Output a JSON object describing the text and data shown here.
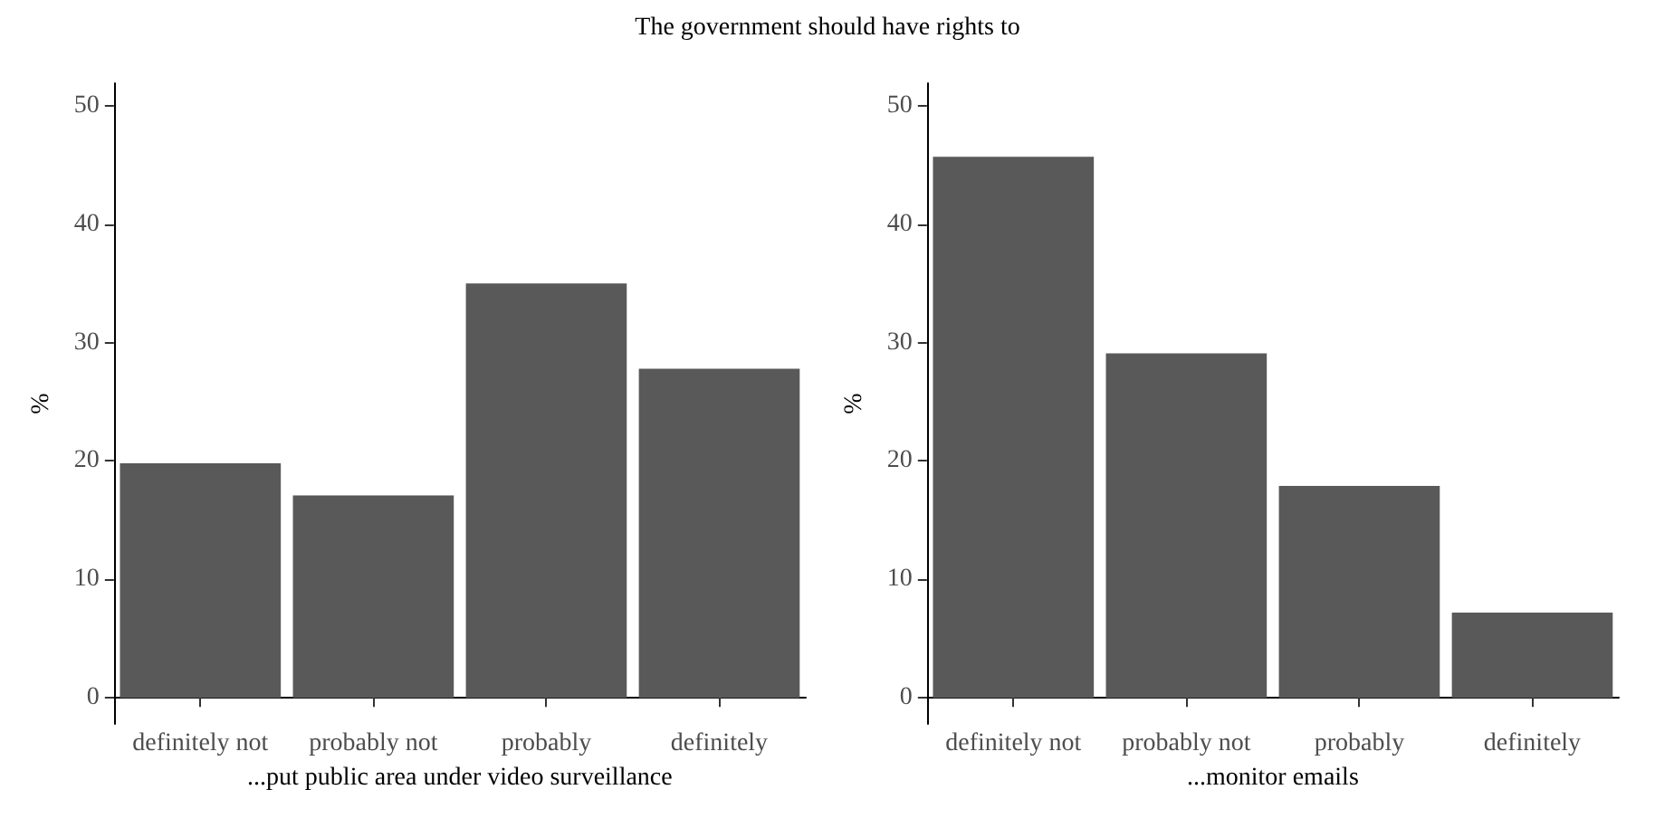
{
  "chart_data": [
    {
      "type": "bar",
      "title": "The government should have rights to",
      "xlabel": "...put public area under video surveillance",
      "ylabel": "%",
      "categories": [
        "definitely not",
        "probably not",
        "probably",
        "definitely"
      ],
      "values": [
        19.8,
        17.1,
        35.0,
        27.8
      ],
      "color": "#595959",
      "ylim": [
        -2.2,
        51.9
      ],
      "yticks": [
        0,
        10,
        20,
        30,
        40,
        50
      ]
    },
    {
      "type": "bar",
      "xlabel": "...monitor emails",
      "ylabel": "%",
      "categories": [
        "definitely not",
        "probably not",
        "probably",
        "definitely"
      ],
      "values": [
        45.7,
        29.1,
        17.9,
        7.2
      ],
      "color": "#595959",
      "ylim": [
        -2.2,
        51.9
      ],
      "yticks": [
        0,
        10,
        20,
        30,
        40,
        50
      ]
    }
  ]
}
